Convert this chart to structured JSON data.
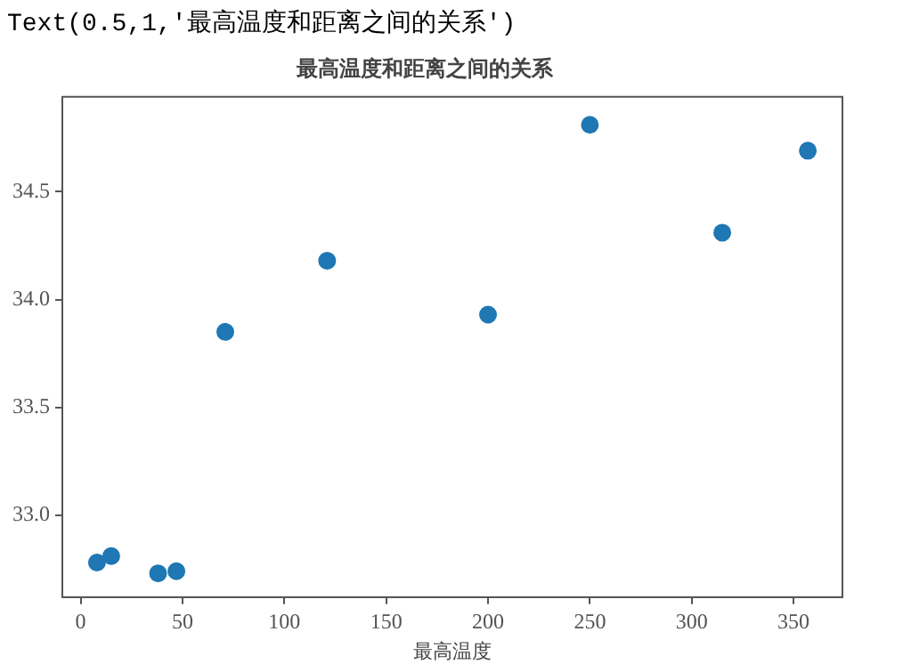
{
  "chart_data": {
    "type": "scatter",
    "title": "最高温度和距离之间的关系",
    "xlabel": "最高温度",
    "annotations": [
      "Text(0.5,1,'最高温度和距离之间的关系')"
    ],
    "x": [
      8,
      15,
      38,
      47,
      71,
      121,
      200,
      250,
      315,
      357
    ],
    "series": [
      {
        "color": "#1f77b4",
        "values": [
          32.78,
          32.81,
          32.73,
          32.74,
          33.85,
          34.18,
          33.93,
          34.81,
          34.31,
          34.69
        ]
      }
    ],
    "xlim": [
      -9,
      374
    ],
    "xticks": [
      0,
      50,
      100,
      150,
      200,
      250,
      300,
      350
    ],
    "ylim": [
      32.62,
      34.94
    ],
    "yticks": [
      {
        "value": 33,
        "label": "33.0"
      },
      34.5,
      {
        "value": 34,
        "label": "34.0"
      },
      33.5
    ],
    "grid": false,
    "legend": false,
    "marker": "circle"
  }
}
